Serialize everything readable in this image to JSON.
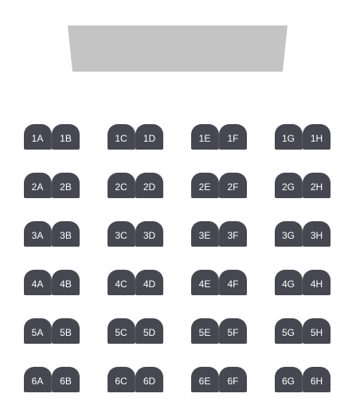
{
  "app": {
    "accent_seat_color": "#474752",
    "screen_color": "#c4c4c4"
  },
  "screen_icon": "cinema-screen",
  "rows": [
    {
      "label": "1",
      "seats": [
        "1A",
        "1B",
        "1C",
        "1D",
        "1E",
        "1F",
        "1G",
        "1H"
      ]
    },
    {
      "label": "2",
      "seats": [
        "2A",
        "2B",
        "2C",
        "2D",
        "2E",
        "2F",
        "2G",
        "2H"
      ]
    },
    {
      "label": "3",
      "seats": [
        "3A",
        "3B",
        "3C",
        "3D",
        "3E",
        "3F",
        "3G",
        "3H"
      ]
    },
    {
      "label": "4",
      "seats": [
        "4A",
        "4B",
        "4C",
        "4D",
        "4E",
        "4F",
        "4G",
        "4H"
      ]
    },
    {
      "label": "5",
      "seats": [
        "5A",
        "5B",
        "5C",
        "5D",
        "5E",
        "5F",
        "5G",
        "5H"
      ]
    },
    {
      "label": "6",
      "seats": [
        "6A",
        "6B",
        "6C",
        "6D",
        "6E",
        "6F",
        "6G",
        "6H"
      ]
    }
  ]
}
